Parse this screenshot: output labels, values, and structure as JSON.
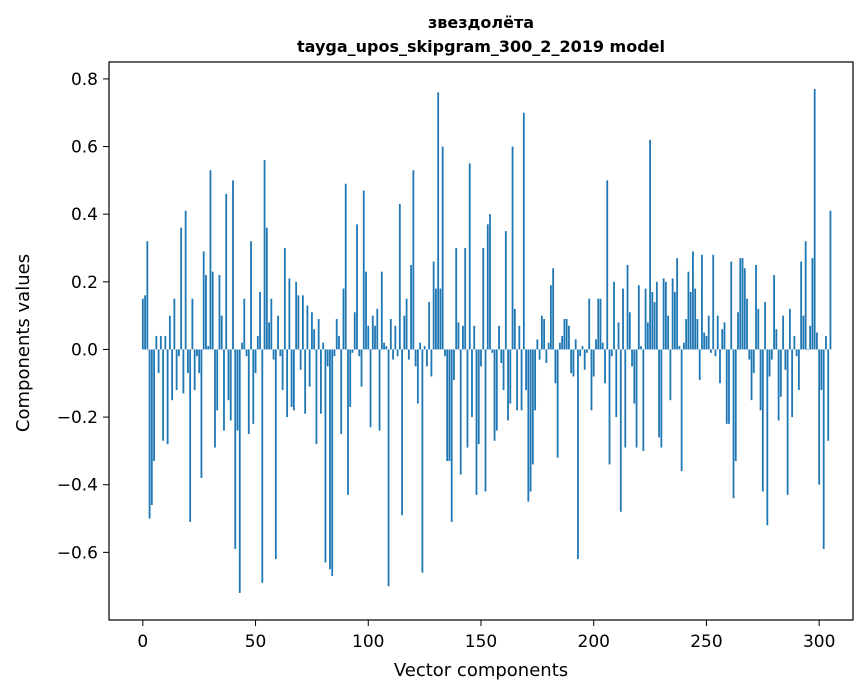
{
  "chart_data": {
    "type": "bar",
    "title_line1": "звездолёта",
    "title_line2": "tayga_upos_skipgram_300_2_2019 model",
    "xlabel": "Vector components",
    "ylabel": "Components values",
    "xlim": [
      -15,
      315
    ],
    "ylim": [
      -0.8,
      0.85
    ],
    "xticks": [
      0,
      50,
      100,
      150,
      200,
      250,
      300
    ],
    "yticks": [
      -0.6,
      -0.4,
      -0.2,
      0.0,
      0.2,
      0.4,
      0.6,
      0.8
    ],
    "xtick_labels": [
      "0",
      "50",
      "100",
      "150",
      "200",
      "250",
      "300"
    ],
    "ytick_labels": [
      "−0.6",
      "−0.4",
      "−0.2",
      "0.0",
      "0.2",
      "0.4",
      "0.6",
      "0.8"
    ],
    "bar_color": "#1f77b4",
    "grid": false,
    "legend": "none",
    "values": [
      0.15,
      0.16,
      0.32,
      -0.5,
      -0.46,
      -0.33,
      0.04,
      -0.07,
      0.04,
      -0.27,
      0.04,
      -0.28,
      0.1,
      -0.15,
      0.15,
      -0.12,
      -0.02,
      0.36,
      -0.13,
      0.41,
      -0.07,
      -0.51,
      0.15,
      -0.12,
      -0.02,
      -0.07,
      -0.38,
      0.29,
      0.22,
      0.01,
      0.53,
      0.23,
      -0.29,
      -0.18,
      0.22,
      0.1,
      -0.24,
      0.46,
      -0.15,
      -0.21,
      0.5,
      -0.59,
      -0.24,
      -0.72,
      0.02,
      0.15,
      -0.02,
      -0.25,
      0.32,
      -0.22,
      -0.07,
      0.04,
      0.17,
      -0.69,
      0.56,
      0.36,
      0.08,
      0.15,
      -0.03,
      -0.62,
      0.1,
      -0.02,
      -0.12,
      0.3,
      -0.2,
      0.21,
      -0.17,
      -0.18,
      0.2,
      0.16,
      -0.06,
      0.16,
      -0.19,
      0.13,
      -0.11,
      0.11,
      0.06,
      -0.28,
      0.09,
      -0.19,
      0.02,
      -0.63,
      -0.05,
      -0.65,
      -0.67,
      -0.02,
      0.09,
      0.04,
      -0.25,
      0.18,
      0.49,
      -0.43,
      -0.17,
      -0.01,
      0.11,
      0.37,
      -0.02,
      -0.11,
      0.47,
      0.23,
      0.07,
      -0.23,
      0.1,
      0.07,
      0.12,
      -0.24,
      0.23,
      0.02,
      0.01,
      -0.7,
      0.09,
      -0.03,
      0.07,
      -0.02,
      0.43,
      -0.49,
      0.1,
      0.15,
      -0.03,
      0.25,
      0.53,
      -0.05,
      -0.16,
      0.02,
      -0.66,
      0.01,
      -0.05,
      0.14,
      -0.08,
      0.26,
      0.18,
      0.76,
      0.18,
      0.6,
      -0.02,
      -0.33,
      -0.33,
      -0.51,
      -0.09,
      0.3,
      0.08,
      -0.37,
      0.07,
      0.3,
      -0.29,
      0.55,
      -0.2,
      0.07,
      -0.43,
      -0.28,
      -0.05,
      0.3,
      -0.42,
      0.37,
      0.4,
      -0.01,
      -0.27,
      -0.24,
      0.07,
      -0.04,
      -0.12,
      0.35,
      -0.21,
      -0.16,
      0.6,
      0.12,
      -0.18,
      0.07,
      -0.18,
      0.7,
      -0.12,
      -0.45,
      -0.42,
      -0.34,
      -0.18,
      0.03,
      -0.03,
      0.1,
      0.09,
      -0.04,
      0.02,
      0.19,
      0.24,
      -0.1,
      -0.32,
      0.02,
      0.04,
      0.09,
      0.09,
      0.07,
      -0.07,
      -0.08,
      0.03,
      -0.62,
      -0.02,
      0.01,
      -0.06,
      -0.01,
      0.15,
      -0.18,
      -0.08,
      0.03,
      0.15,
      0.15,
      0.02,
      -0.1,
      0.5,
      -0.34,
      -0.02,
      0.2,
      -0.2,
      0.08,
      -0.48,
      0.18,
      -0.29,
      0.25,
      0.11,
      -0.05,
      -0.16,
      -0.29,
      0.19,
      0.01,
      -0.3,
      0.18,
      0.08,
      0.62,
      0.17,
      0.14,
      0.2,
      -0.26,
      -0.29,
      0.21,
      0.2,
      0.1,
      -0.15,
      0.21,
      0.17,
      0.27,
      0.01,
      -0.36,
      0.02,
      0.09,
      0.23,
      0.17,
      0.29,
      0.18,
      0.09,
      -0.09,
      0.28,
      0.05,
      0.04,
      0.1,
      -0.01,
      0.28,
      -0.02,
      0.1,
      -0.1,
      0.06,
      0.08,
      -0.22,
      -0.22,
      0.26,
      -0.44,
      -0.33,
      0.11,
      0.27,
      0.27,
      0.24,
      0.15,
      -0.03,
      -0.15,
      -0.07,
      0.25,
      0.12,
      -0.18,
      -0.42,
      0.14,
      -0.52,
      -0.08,
      -0.03,
      0.22,
      0.06,
      -0.21,
      -0.14,
      0.1,
      -0.06,
      -0.43,
      0.12,
      -0.2,
      0.04,
      -0.02,
      -0.12,
      0.26,
      0.1,
      0.32,
      0.0,
      0.07,
      0.27,
      0.77,
      0.05,
      -0.4,
      -0.12,
      -0.59,
      0.04,
      -0.27,
      0.41
    ]
  }
}
